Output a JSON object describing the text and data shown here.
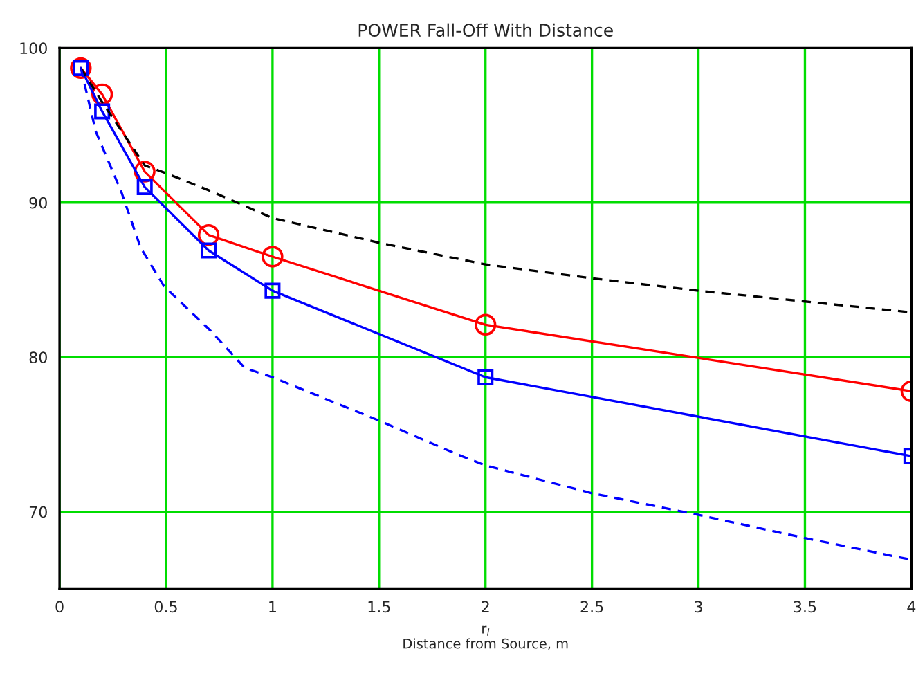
{
  "chart_data": {
    "type": "line",
    "title": "POWER Fall-Off With Distance",
    "xlabel": "r$_{l}$\nDistance from Source, m",
    "xlim": [
      0,
      4
    ],
    "xticks": [
      0,
      0.5,
      1,
      1.5,
      2,
      2.5,
      3,
      3.5,
      4
    ],
    "ylim": [
      65,
      100
    ],
    "yticks": [
      70,
      80,
      90,
      100
    ],
    "grid": true,
    "legend": false,
    "series": [
      {
        "color": "#ff0000",
        "marker": "circle",
        "line_style": "solid",
        "x": [
          0.1,
          0.2,
          0.4,
          0.7,
          1.0,
          2.0,
          4.0
        ],
        "values": [
          98.7,
          97.0,
          92.0,
          87.9,
          86.5,
          82.1,
          77.8
        ]
      },
      {
        "color": "#0000ff",
        "marker": "square",
        "line_style": "solid",
        "x": [
          0.1,
          0.2,
          0.4,
          0.7,
          1.0,
          2.0,
          4.0
        ],
        "values": [
          98.7,
          95.9,
          91.0,
          86.9,
          84.3,
          78.7,
          73.6
        ]
      },
      {
        "color": "#000000",
        "marker": "none",
        "line_style": "dashed",
        "x": [
          0.1,
          0.2,
          0.4,
          0.5,
          0.7,
          1.0,
          1.5,
          2.0,
          2.5,
          3.0,
          3.5,
          4.0
        ],
        "values": [
          98.7,
          96.5,
          92.4,
          91.9,
          90.8,
          89.0,
          87.4,
          86.0,
          85.1,
          84.3,
          83.6,
          82.9
        ]
      },
      {
        "color": "#0000ff",
        "marker": "none",
        "line_style": "dashed",
        "x": [
          0.1,
          0.17,
          0.29,
          0.38,
          0.49,
          0.71,
          0.87,
          1.0,
          1.5,
          1.87,
          2.0,
          2.5,
          3.0,
          3.5,
          4.0
        ],
        "values": [
          98.7,
          94.6,
          90.7,
          87.1,
          84.6,
          81.7,
          79.3,
          78.7,
          75.9,
          73.7,
          73.0,
          71.2,
          69.8,
          68.3,
          66.9
        ]
      }
    ]
  }
}
